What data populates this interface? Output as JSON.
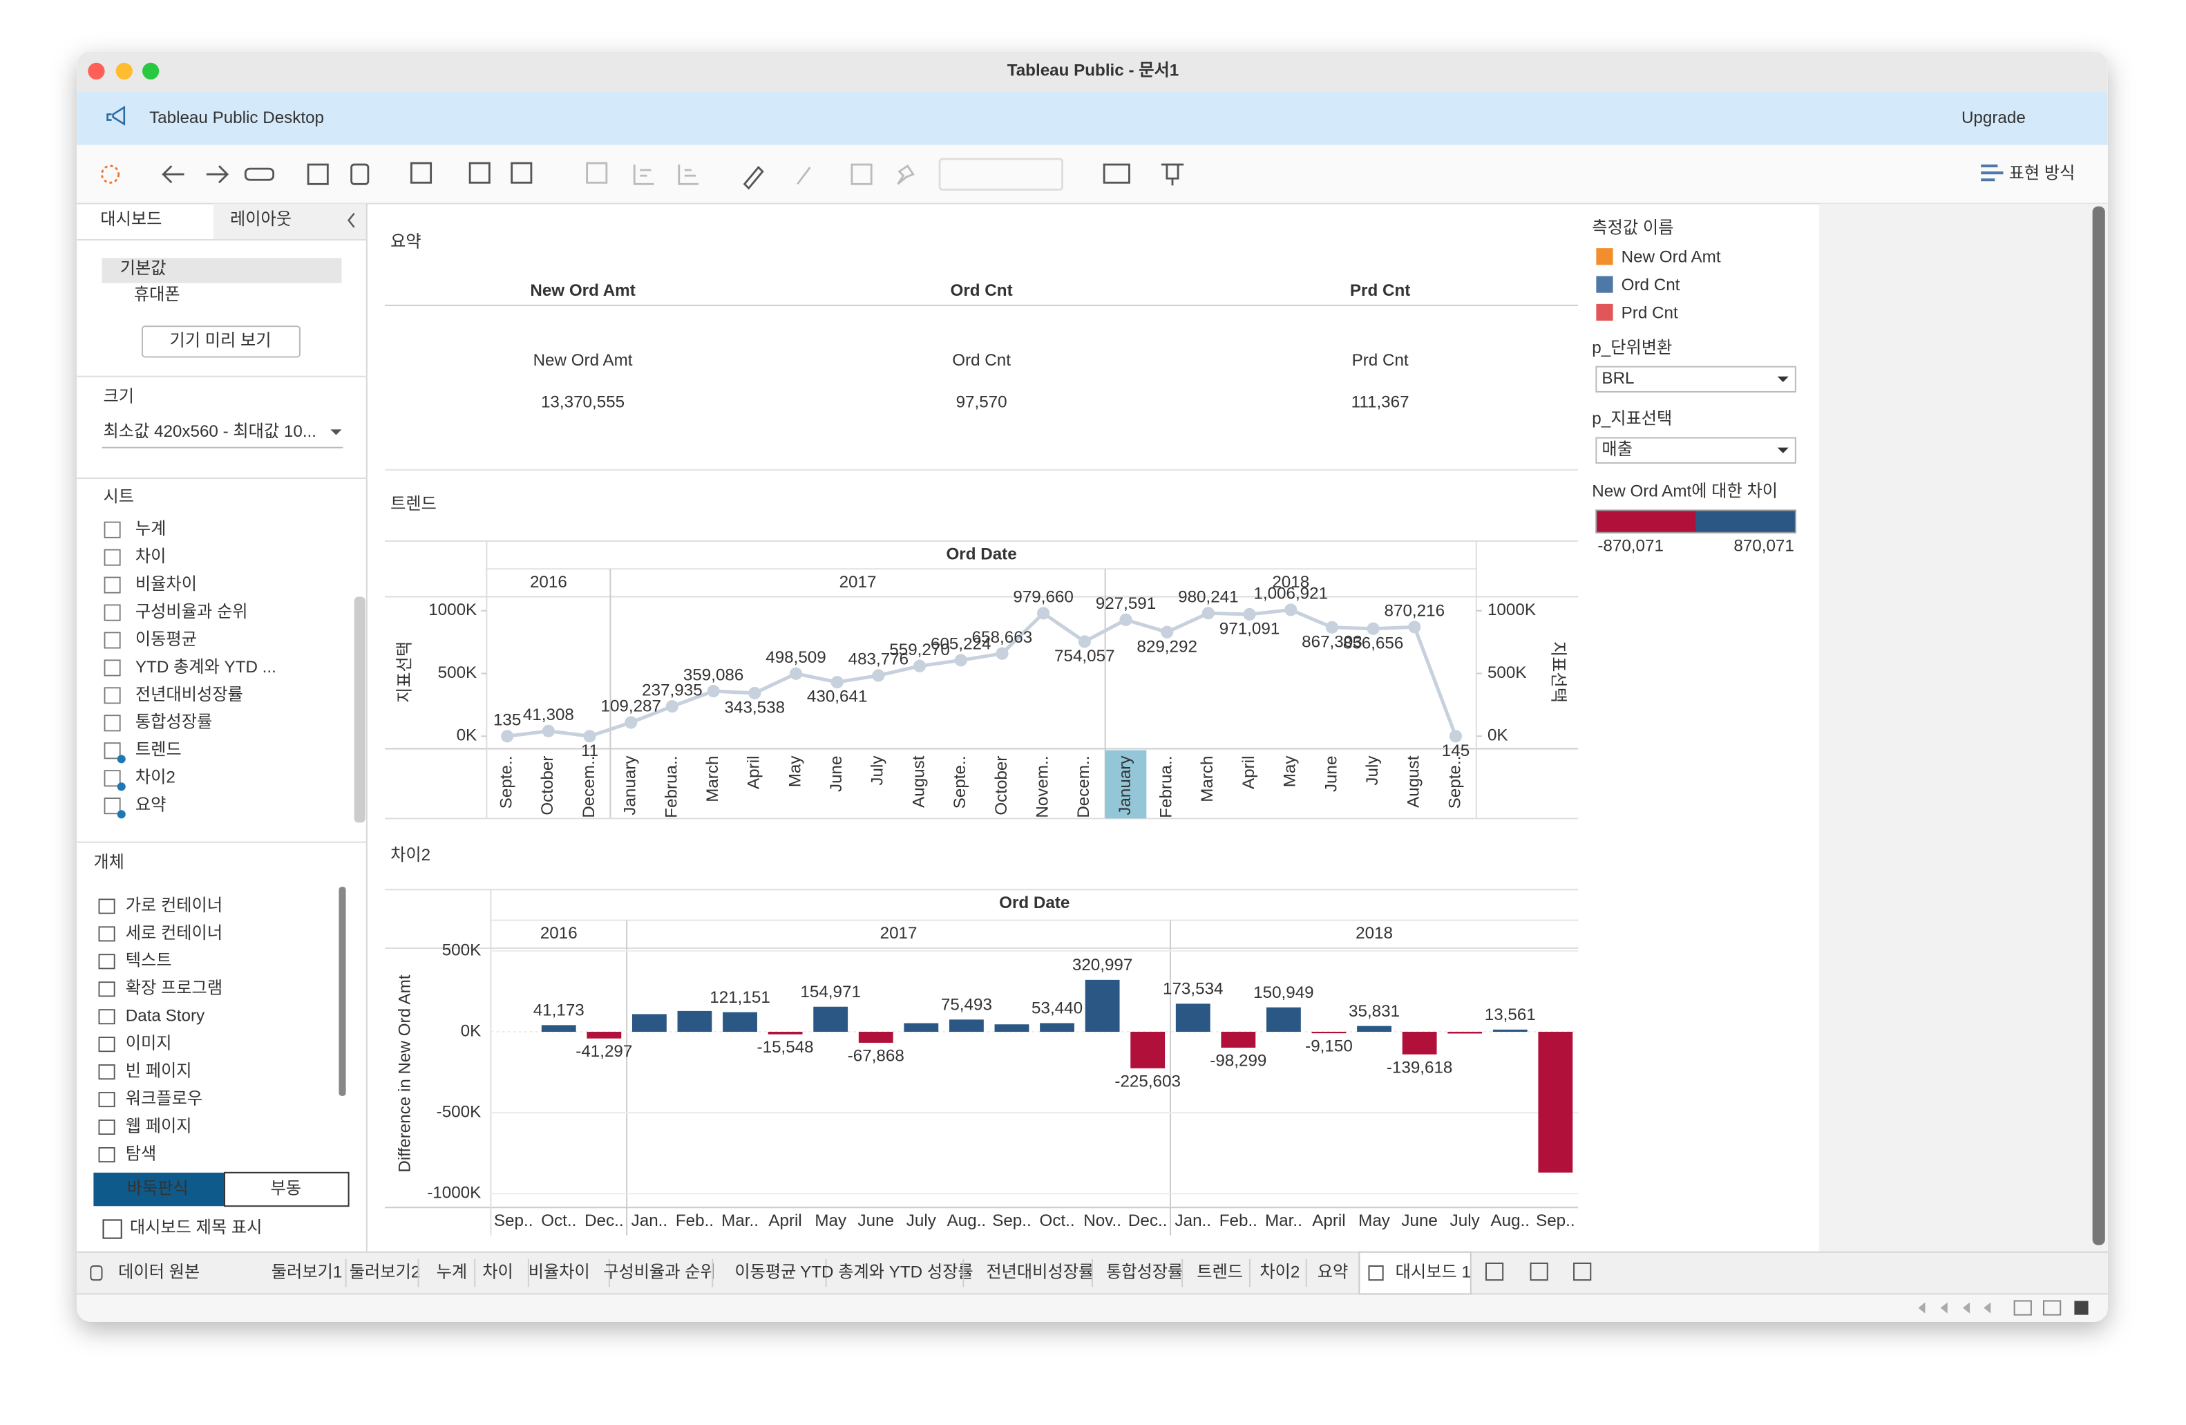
{
  "window": {
    "title": "Tableau Public - 문서1"
  },
  "banner": {
    "product": "Tableau Public Desktop",
    "upgrade": "Upgrade"
  },
  "toolbar": {
    "presentation": "표현 방식"
  },
  "left_panel": {
    "tabs": [
      "대시보드",
      "레이아웃"
    ],
    "devices": [
      "기본값",
      "휴대폰"
    ],
    "preview_button": "기기 미리 보기",
    "size": {
      "label": "크기",
      "value": "최소값 420x560 - 최대값 10..."
    },
    "sheets": {
      "label": "시트",
      "items": [
        "누계",
        "차이",
        "비율차이",
        "구성비율과 순위",
        "이동평균",
        "YTD 총계와 YTD ...",
        "전년대비성장률",
        "통합성장률",
        "트렌드",
        "차이2",
        "요약"
      ]
    },
    "objects": {
      "label": "개체",
      "items": [
        "가로 컨테이너",
        "세로 컨테이너",
        "텍스트",
        "확장 프로그램",
        "Data Story",
        "이미지",
        "빈 페이지",
        "워크플로우",
        "웹 페이지",
        "탐색"
      ]
    },
    "layout_modes": [
      "바둑판식",
      "부동"
    ],
    "show_title": "대시보드 제목 표시"
  },
  "summary": {
    "title": "요약",
    "columns": [
      {
        "header": "New Ord Amt",
        "label": "New Ord Amt",
        "value": "13,370,555"
      },
      {
        "header": "Ord Cnt",
        "label": "Ord Cnt",
        "value": "97,570"
      },
      {
        "header": "Prd Cnt",
        "label": "Prd Cnt",
        "value": "111,367"
      }
    ]
  },
  "chart_data": [
    {
      "type": "line",
      "title": "트렌드",
      "x_title": "Ord Date",
      "y_title": "지표선택",
      "y2_title": "지표선택",
      "years": [
        "2016",
        "2016",
        "2016",
        "2017",
        "2017",
        "2017",
        "2017",
        "2017",
        "2017",
        "2017",
        "2017",
        "2017",
        "2017",
        "2017",
        "2017",
        "2018",
        "2018",
        "2018",
        "2018",
        "2018",
        "2018",
        "2018",
        "2018",
        "2018"
      ],
      "categories": [
        "Septe..",
        "October",
        "Decem..",
        "January",
        "Februa..",
        "March",
        "April",
        "May",
        "June",
        "July",
        "August",
        "Septe..",
        "October",
        "Novem..",
        "Decem..",
        "January",
        "Februa..",
        "March",
        "April",
        "May",
        "June",
        "July",
        "August",
        "Septe.."
      ],
      "values": [
        135,
        41308,
        11,
        109287,
        237935,
        359086,
        343538,
        498509,
        430641,
        483776,
        559270,
        605224,
        658663,
        979660,
        754057,
        927591,
        829292,
        980241,
        971091,
        1006921,
        867303,
        856656,
        870216,
        145
      ],
      "value_labels": [
        "135",
        "41,308",
        "11",
        "109,287",
        "237,935",
        "359,086",
        "343,538",
        "498,509",
        "430,641",
        "483,776",
        "559,270",
        "605,224",
        "658,663",
        "979,660",
        "754,057",
        "927,591",
        "829,292",
        "980,241",
        "971,091",
        "1,006,921",
        "867,303",
        "856,656",
        "870,216",
        "145"
      ],
      "color": "#c6d1dd",
      "ylim": [
        -100000,
        1111000
      ],
      "yticks": [
        {
          "value": 0,
          "label": "0K"
        },
        {
          "value": 500000,
          "label": "500K"
        },
        {
          "value": 1000000,
          "label": "1000K"
        }
      ],
      "y2lim": [
        -100000,
        1111000
      ],
      "y2ticks": [
        {
          "value": 0,
          "label": "0K"
        },
        {
          "value": 500000,
          "label": "500K"
        },
        {
          "value": 1000000,
          "label": "1000K"
        }
      ],
      "grid": false
    },
    {
      "type": "bar",
      "title": "차이2",
      "x_title": "Ord Date",
      "y_title": "Difference in New Ord Amt",
      "years": [
        "2016",
        "2016",
        "2016",
        "2017",
        "2017",
        "2017",
        "2017",
        "2017",
        "2017",
        "2017",
        "2017",
        "2017",
        "2017",
        "2017",
        "2017",
        "2018",
        "2018",
        "2018",
        "2018",
        "2018",
        "2018",
        "2018",
        "2018",
        "2018"
      ],
      "categories": [
        "Sep..",
        "Oct..",
        "Dec..",
        "Jan..",
        "Feb..",
        "Mar..",
        "April",
        "May",
        "June",
        "July",
        "Aug..",
        "Sep..",
        "Oct..",
        "Nov..",
        "Dec..",
        "Jan..",
        "Feb..",
        "Mar..",
        "April",
        "May",
        "June",
        "July",
        "Aug..",
        "Sep.."
      ],
      "values": [
        null,
        41173,
        -41297,
        109276,
        128648,
        121151,
        -15548,
        154971,
        -67868,
        53135,
        75493,
        45954,
        53440,
        320997,
        -225603,
        173534,
        -98299,
        150949,
        -9150,
        35831,
        -139618,
        -10647,
        13561,
        -870071
      ],
      "value_labels": [
        null,
        "41,173",
        "-41,297",
        null,
        null,
        "121,151",
        "-15,548",
        "154,971",
        "-67,868",
        null,
        "75,493",
        null,
        "53,440",
        "320,997",
        "-225,603",
        "173,534",
        "-98,299",
        "150,949",
        "-9,150",
        "35,831",
        "-139,618",
        null,
        "13,561",
        null
      ],
      "colors": {
        "positive": "#2a5783",
        "negative": "#b0103a"
      },
      "ylim": [
        -1086000,
        517000
      ],
      "yticks": [
        {
          "value": 500000,
          "label": "500K"
        },
        {
          "value": 0,
          "label": "0K"
        },
        {
          "value": -500000,
          "label": "-500K"
        },
        {
          "value": -1000000,
          "label": "-1000K"
        }
      ],
      "grid": true
    }
  ],
  "legend": {
    "measure_title": "측정값 이름",
    "measures": [
      {
        "name": "New Ord Amt",
        "color": "#f28e2b"
      },
      {
        "name": "Ord Cnt",
        "color": "#4e79a7"
      },
      {
        "name": "Prd Cnt",
        "color": "#e15759"
      }
    ],
    "params": [
      {
        "label": "p_단위변환",
        "value": "BRL"
      },
      {
        "label": "p_지표선택",
        "value": "매출"
      }
    ],
    "diff_title": "New Ord Amt에 대한 차이",
    "diff_range": [
      {
        "value": -870071,
        "label": "-870,071"
      },
      {
        "value": 870071,
        "label": "870,071"
      }
    ]
  },
  "sheet_tabs": [
    "데이터 원본",
    "둘러보기1",
    "둘러보기2",
    "누계",
    "차이",
    "비율차이",
    "구성비율과 순위",
    "이동평균",
    "YTD 총계와 YTD 성장률",
    "전년대비성장률",
    "통합성장률",
    "트렌드",
    "차이2",
    "요약",
    "대시보드 1"
  ]
}
